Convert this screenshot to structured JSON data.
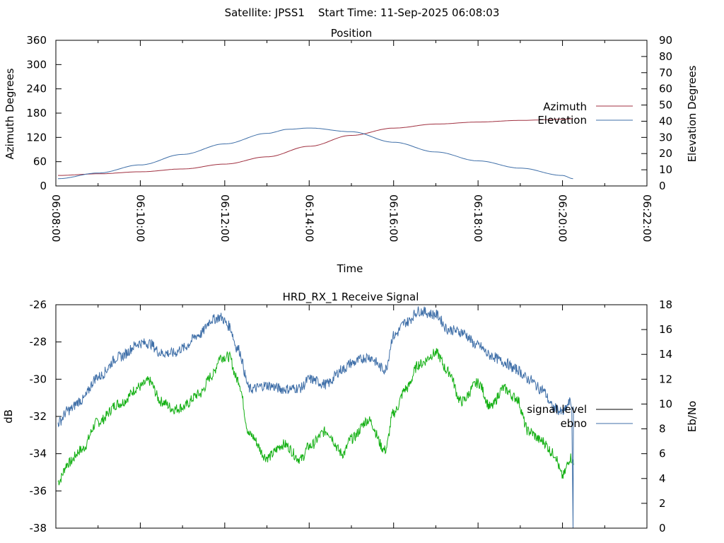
{
  "header": {
    "title": "Satellite: JPSS1    Start Time: 11-Sep-2025 06:08:03"
  },
  "chart_data": [
    {
      "type": "line",
      "title": "Position",
      "xlabel": "Time",
      "ylabel": "Azimuth Degrees",
      "y2label": "Elevation Degrees",
      "x_ticks": [
        "06:08:00",
        "06:10:00",
        "06:12:00",
        "06:14:00",
        "06:16:00",
        "06:18:00",
        "06:20:00",
        "06:22:00"
      ],
      "xlim_minutes": [
        0,
        14
      ],
      "ylim": [
        0,
        360
      ],
      "y_ticks": [
        "0",
        "60",
        "120",
        "180",
        "240",
        "300",
        "360"
      ],
      "y2lim": [
        0,
        90
      ],
      "y2_ticks": [
        "0",
        "10",
        "20",
        "30",
        "40",
        "50",
        "60",
        "70",
        "80",
        "90"
      ],
      "legend": "right",
      "colors": {
        "Azimuth": "#a03040",
        "Elevation": "#3f6fa8"
      },
      "series": [
        {
          "name": "Azimuth",
          "axis": "left",
          "x": [
            0.05,
            1,
            2,
            3,
            4,
            5,
            6,
            7,
            8,
            9,
            10,
            11,
            12,
            12.25
          ],
          "values": [
            26,
            30,
            35,
            42,
            54,
            72,
            98,
            125,
            143,
            153,
            158,
            162,
            165,
            166
          ]
        },
        {
          "name": "Elevation",
          "axis": "right",
          "x": [
            0.05,
            1,
            2,
            3,
            4,
            5,
            5.5,
            6,
            7,
            8,
            9,
            10,
            11,
            12,
            12.25
          ],
          "values": [
            4.5,
            8,
            13,
            19.5,
            26,
            32.5,
            35,
            35.8,
            33.5,
            27,
            21,
            15.5,
            11,
            6.5,
            4.5
          ]
        }
      ]
    },
    {
      "type": "line",
      "title": "HRD_RX_1 Receive Signal",
      "ylabel": "dB",
      "y2label": "Eb/No",
      "xlim_minutes": [
        0,
        14
      ],
      "ylim": [
        -38,
        -26
      ],
      "y_ticks": [
        "-26",
        "-28",
        "-30",
        "-32",
        "-34",
        "-36",
        "-38"
      ],
      "y2lim": [
        0,
        18
      ],
      "y2_ticks": [
        "0",
        "2",
        "4",
        "6",
        "8",
        "10",
        "12",
        "14",
        "16",
        "18"
      ],
      "legend": "right",
      "colors": {
        "signal level": "#000000",
        "ebno": "#3f6fa8",
        "signal_trace": "#14b014"
      },
      "series": [
        {
          "name": "signal level",
          "axis": "left",
          "x": [
            0.05,
            0.3,
            0.6,
            1,
            1.5,
            2,
            2.2,
            2.5,
            2.8,
            3,
            3.4,
            3.7,
            3.9,
            4.1,
            4.3,
            4.6,
            5,
            5.4,
            5.8,
            6,
            6.4,
            6.8,
            7,
            7.4,
            7.8,
            8,
            8.3,
            8.6,
            9,
            9.3,
            9.6,
            10,
            10.3,
            10.6,
            10.9,
            11.2,
            11.5,
            11.8,
            12,
            12.2,
            12.27
          ],
          "values": [
            -35.5,
            -34.5,
            -33.8,
            -32.3,
            -31.3,
            -30.4,
            -30.1,
            -31.2,
            -31.6,
            -31.5,
            -30.8,
            -29.8,
            -28.8,
            -28.8,
            -30,
            -33,
            -34.2,
            -33.5,
            -34.3,
            -33.6,
            -32.8,
            -34,
            -33.2,
            -32.2,
            -33.8,
            -31.8,
            -30.5,
            -29.2,
            -28.6,
            -29.6,
            -31.2,
            -30.2,
            -31.5,
            -30.5,
            -31,
            -32.8,
            -33.3,
            -34,
            -35.2,
            -34.2,
            -34.6
          ]
        },
        {
          "name": "ebno",
          "axis": "right",
          "x": [
            0.05,
            0.3,
            0.6,
            1,
            1.5,
            2,
            2.2,
            2.5,
            2.8,
            3,
            3.4,
            3.7,
            3.9,
            4.1,
            4.3,
            4.6,
            5,
            5.4,
            5.8,
            6,
            6.4,
            6.8,
            7,
            7.4,
            7.8,
            8,
            8.3,
            8.6,
            9,
            9.3,
            9.6,
            10,
            10.3,
            10.6,
            10.9,
            11.2,
            11.5,
            11.8,
            12,
            12.2,
            12.25,
            12.27
          ],
          "values": [
            8.5,
            9.5,
            10.3,
            12.2,
            13.8,
            14.9,
            14.9,
            14.1,
            14.1,
            14.5,
            15.6,
            16.8,
            17,
            16.3,
            14.5,
            11.2,
            11.5,
            11.2,
            11.3,
            12,
            11.6,
            12.8,
            13.3,
            13.8,
            12.8,
            15.5,
            16.6,
            17.5,
            17.2,
            16,
            15.8,
            14.7,
            13.9,
            13.4,
            12.8,
            12,
            11.2,
            9.7,
            9.3,
            10.2,
            0,
            9.8
          ]
        }
      ]
    }
  ]
}
